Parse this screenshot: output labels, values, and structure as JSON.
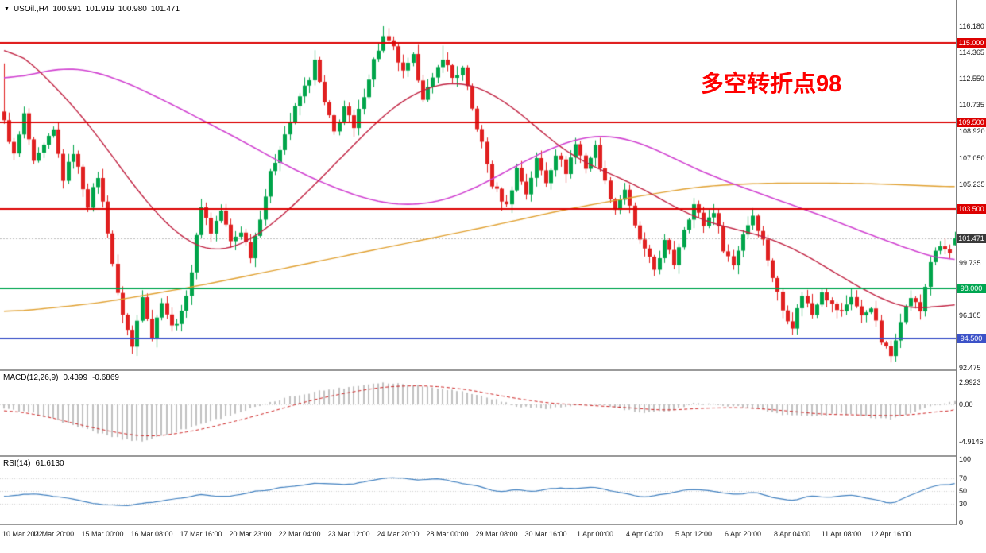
{
  "window": {
    "symbol": "USOil.,H4",
    "ohlc": {
      "open": "100.991",
      "high": "101.919",
      "low": "100.980",
      "close": "101.471"
    }
  },
  "annotation": {
    "text": "多空转折点98",
    "color": "#ff0000"
  },
  "macd_panel": {
    "label": "MACD(12,26,9)",
    "main_value": "0.4399",
    "signal_value": "-0.6869"
  },
  "rsi_panel": {
    "label": "RSI(14)",
    "value": "61.6130"
  },
  "price_axis": {
    "labels": [
      {
        "text": "116.180",
        "price": 116.18
      },
      {
        "text": "114.365",
        "price": 114.365
      },
      {
        "text": "112.550",
        "price": 112.55
      },
      {
        "text": "110.735",
        "price": 110.735
      },
      {
        "text": "108.920",
        "price": 108.92
      },
      {
        "text": "107.050",
        "price": 107.05
      },
      {
        "text": "105.235",
        "price": 105.235
      },
      {
        "text": "99.735",
        "price": 99.735
      },
      {
        "text": "96.105",
        "price": 96.105
      },
      {
        "text": "92.475",
        "price": 92.475
      }
    ],
    "badges": [
      {
        "text": "115.000",
        "price": 115.0,
        "color": "#dc0000"
      },
      {
        "text": "109.500",
        "price": 109.5,
        "color": "#dc0000"
      },
      {
        "text": "103.500",
        "price": 103.5,
        "color": "#dc0000"
      },
      {
        "text": "101.471",
        "price": 101.471,
        "color": "#3a3a3a"
      },
      {
        "text": "98.000",
        "price": 98.0,
        "color": "#00a651"
      },
      {
        "text": "94.500",
        "price": 94.5,
        "color": "#3c52c8"
      }
    ]
  },
  "macd_axis": [
    {
      "text": "2.9923",
      "value": 2.9923
    },
    {
      "text": "0.00",
      "value": 0
    },
    {
      "text": "-4.9146",
      "value": -4.9146
    }
  ],
  "rsi_axis": [
    {
      "text": "100",
      "value": 100
    },
    {
      "text": "70",
      "value": 70
    },
    {
      "text": "50",
      "value": 50
    },
    {
      "text": "30",
      "value": 30
    },
    {
      "text": "0",
      "value": 0
    }
  ],
  "time_axis": [
    "10 Mar 2022",
    "11 Mar 20:00",
    "15 Mar 00:00",
    "16 Mar 08:00",
    "17 Mar 16:00",
    "20 Mar 23:00",
    "22 Mar 04:00",
    "23 Mar 12:00",
    "24 Mar 20:00",
    "28 Mar 00:00",
    "29 Mar 08:00",
    "30 Mar 16:00",
    "1 Apr 00:00",
    "4 Apr 04:00",
    "5 Apr 12:00",
    "6 Apr 20:00",
    "8 Apr 04:00",
    "11 Apr 08:00",
    "12 Apr 16:00"
  ],
  "colors": {
    "candle_up": "#00a44a",
    "candle_down": "#e02020",
    "ma_magenta": "#d040d0",
    "ma_red": "#c02040",
    "ma_orange": "#e0a030",
    "level_red": "#dc0000",
    "level_green": "#00a651",
    "level_blue": "#3c52c8",
    "macd_hist": "#c0c0c0",
    "macd_signal": "#cc2222",
    "rsi_line": "#3f7fbf",
    "current_price_line": "#bbbbbb"
  },
  "chart_data": {
    "type": "candlestick",
    "symbol": "USOil",
    "timeframe": "H4",
    "bars": 194,
    "price_range": [
      92.475,
      116.18
    ],
    "current_price": 101.471,
    "levels": [
      {
        "price": 115.0,
        "color": "#dc0000"
      },
      {
        "price": 109.5,
        "color": "#dc0000"
      },
      {
        "price": 103.5,
        "color": "#dc0000"
      },
      {
        "price": 98.0,
        "color": "#00a651"
      },
      {
        "price": 94.5,
        "color": "#3c52c8"
      }
    ],
    "last_bar": {
      "o": 100.991,
      "h": 101.919,
      "l": 100.98,
      "c": 101.471
    },
    "close_anchors": [
      [
        0,
        109.5
      ],
      [
        2,
        107.2
      ],
      [
        4,
        110.0
      ],
      [
        6,
        106.6
      ],
      [
        8,
        107.8
      ],
      [
        10,
        108.9
      ],
      [
        12,
        105.6
      ],
      [
        14,
        107.5
      ],
      [
        17,
        103.8
      ],
      [
        19,
        105.8
      ],
      [
        21,
        102.0
      ],
      [
        23,
        97.5
      ],
      [
        26,
        93.9
      ],
      [
        28,
        97.6
      ],
      [
        30,
        94.6
      ],
      [
        32,
        97.2
      ],
      [
        34,
        95.3
      ],
      [
        36,
        96.2
      ],
      [
        38,
        99.2
      ],
      [
        40,
        103.8
      ],
      [
        42,
        101.9
      ],
      [
        44,
        103.4
      ],
      [
        46,
        101.2
      ],
      [
        48,
        102.0
      ],
      [
        50,
        100.3
      ],
      [
        52,
        103.0
      ],
      [
        54,
        105.9
      ],
      [
        56,
        107.8
      ],
      [
        58,
        109.6
      ],
      [
        60,
        111.3
      ],
      [
        62,
        112.6
      ],
      [
        63,
        113.7
      ],
      [
        65,
        110.8
      ],
      [
        67,
        108.8
      ],
      [
        69,
        110.6
      ],
      [
        71,
        109.0
      ],
      [
        73,
        111.5
      ],
      [
        75,
        113.8
      ],
      [
        77,
        115.4
      ],
      [
        79,
        114.6
      ],
      [
        81,
        112.9
      ],
      [
        83,
        114.0
      ],
      [
        85,
        111.3
      ],
      [
        87,
        112.4
      ],
      [
        89,
        114.1
      ],
      [
        91,
        112.6
      ],
      [
        93,
        113.2
      ],
      [
        95,
        110.4
      ],
      [
        97,
        108.0
      ],
      [
        99,
        105.2
      ],
      [
        102,
        103.7
      ],
      [
        104,
        106.3
      ],
      [
        106,
        104.6
      ],
      [
        108,
        106.9
      ],
      [
        110,
        105.4
      ],
      [
        112,
        107.4
      ],
      [
        114,
        106.1
      ],
      [
        116,
        108.0
      ],
      [
        118,
        106.4
      ],
      [
        120,
        107.8
      ],
      [
        122,
        105.3
      ],
      [
        124,
        103.5
      ],
      [
        126,
        104.9
      ],
      [
        128,
        102.2
      ],
      [
        130,
        100.6
      ],
      [
        132,
        99.3
      ],
      [
        134,
        101.2
      ],
      [
        136,
        99.7
      ],
      [
        138,
        102.2
      ],
      [
        140,
        103.8
      ],
      [
        142,
        102.4
      ],
      [
        144,
        103.4
      ],
      [
        146,
        100.8
      ],
      [
        148,
        99.6
      ],
      [
        150,
        101.8
      ],
      [
        152,
        103.1
      ],
      [
        154,
        101.3
      ],
      [
        156,
        98.8
      ],
      [
        158,
        96.5
      ],
      [
        160,
        95.4
      ],
      [
        162,
        97.6
      ],
      [
        164,
        96.2
      ],
      [
        166,
        97.9
      ],
      [
        168,
        96.8
      ],
      [
        170,
        96.3
      ],
      [
        172,
        97.5
      ],
      [
        174,
        96.0
      ],
      [
        176,
        96.8
      ],
      [
        178,
        94.3
      ],
      [
        180,
        93.3
      ],
      [
        182,
        95.9
      ],
      [
        184,
        97.4
      ],
      [
        186,
        96.4
      ],
      [
        188,
        99.9
      ],
      [
        190,
        100.9
      ],
      [
        192,
        100.4
      ],
      [
        193,
        101.471
      ]
    ],
    "spikes": [
      {
        "i": 0,
        "high": 113.6
      },
      {
        "i": 26,
        "low": 93.45
      },
      {
        "i": 77,
        "high": 116.18
      },
      {
        "i": 89,
        "high": 114.83
      },
      {
        "i": 180,
        "low": 92.85
      }
    ],
    "ma_magenta": [
      [
        0,
        112.3
      ],
      [
        8,
        113.1
      ],
      [
        15,
        113.4
      ],
      [
        25,
        112.3
      ],
      [
        35,
        110.6
      ],
      [
        48,
        108.3
      ],
      [
        60,
        106.0
      ],
      [
        72,
        104.3
      ],
      [
        80,
        103.7
      ],
      [
        88,
        103.9
      ],
      [
        95,
        104.8
      ],
      [
        103,
        106.3
      ],
      [
        110,
        107.6
      ],
      [
        117,
        108.5
      ],
      [
        122,
        108.7
      ],
      [
        128,
        108.3
      ],
      [
        135,
        107.2
      ],
      [
        142,
        106.0
      ],
      [
        150,
        105.0
      ],
      [
        158,
        104.0
      ],
      [
        165,
        103.2
      ],
      [
        172,
        102.2
      ],
      [
        180,
        101.2
      ],
      [
        187,
        100.3
      ],
      [
        193,
        99.7
      ]
    ],
    "ma_red": [
      [
        0,
        115.5
      ],
      [
        8,
        112.8
      ],
      [
        16,
        110.0
      ],
      [
        24,
        106.2
      ],
      [
        31,
        103.0
      ],
      [
        40,
        100.4
      ],
      [
        48,
        100.8
      ],
      [
        56,
        102.8
      ],
      [
        64,
        105.5
      ],
      [
        72,
        108.3
      ],
      [
        80,
        111.0
      ],
      [
        89,
        112.4
      ],
      [
        96,
        112.2
      ],
      [
        105,
        110.2
      ],
      [
        113,
        107.6
      ],
      [
        121,
        106.2
      ],
      [
        129,
        105.1
      ],
      [
        137,
        103.4
      ],
      [
        145,
        102.3
      ],
      [
        153,
        101.8
      ],
      [
        161,
        100.7
      ],
      [
        169,
        99.0
      ],
      [
        177,
        97.4
      ],
      [
        184,
        96.4
      ],
      [
        189,
        96.6
      ],
      [
        193,
        97.3
      ]
    ],
    "ma_orange": [
      [
        0,
        96.3
      ],
      [
        20,
        97.0
      ],
      [
        40,
        98.2
      ],
      [
        60,
        99.6
      ],
      [
        80,
        101.0
      ],
      [
        100,
        102.4
      ],
      [
        113,
        103.4
      ],
      [
        129,
        104.4
      ],
      [
        142,
        105.1
      ],
      [
        155,
        105.3
      ],
      [
        170,
        105.3
      ],
      [
        182,
        105.2
      ],
      [
        193,
        105.0
      ]
    ],
    "macd": {
      "range": [
        -4.9146,
        2.9923
      ],
      "current_main": 0.4399,
      "current_signal": -0.6869,
      "hist_anchors": [
        [
          0,
          -0.6
        ],
        [
          6,
          -1.2
        ],
        [
          12,
          -2.3
        ],
        [
          18,
          -3.6
        ],
        [
          24,
          -4.6
        ],
        [
          28,
          -4.9
        ],
        [
          34,
          -3.8
        ],
        [
          40,
          -2.6
        ],
        [
          46,
          -1.4
        ],
        [
          52,
          -0.2
        ],
        [
          58,
          1.0
        ],
        [
          64,
          1.8
        ],
        [
          70,
          2.3
        ],
        [
          76,
          2.9
        ],
        [
          82,
          2.7
        ],
        [
          88,
          2.2
        ],
        [
          94,
          1.6
        ],
        [
          100,
          0.6
        ],
        [
          104,
          -0.2
        ],
        [
          110,
          -0.6
        ],
        [
          116,
          -0.2
        ],
        [
          120,
          0.1
        ],
        [
          126,
          -0.7
        ],
        [
          130,
          -1.2
        ],
        [
          136,
          -0.7
        ],
        [
          140,
          0.2
        ],
        [
          146,
          -0.1
        ],
        [
          152,
          -0.5
        ],
        [
          158,
          -1.3
        ],
        [
          164,
          -1.6
        ],
        [
          170,
          -1.2
        ],
        [
          176,
          -1.7
        ],
        [
          180,
          -1.9
        ],
        [
          184,
          -1.1
        ],
        [
          188,
          -0.3
        ],
        [
          193,
          0.44
        ]
      ],
      "signal_anchors": [
        [
          0,
          -0.7
        ],
        [
          8,
          -1.5
        ],
        [
          16,
          -2.8
        ],
        [
          24,
          -3.9
        ],
        [
          30,
          -4.3
        ],
        [
          38,
          -3.6
        ],
        [
          46,
          -2.4
        ],
        [
          54,
          -1.0
        ],
        [
          62,
          0.5
        ],
        [
          70,
          1.6
        ],
        [
          78,
          2.4
        ],
        [
          86,
          2.5
        ],
        [
          94,
          2.0
        ],
        [
          102,
          1.0
        ],
        [
          110,
          0.2
        ],
        [
          118,
          -0.1
        ],
        [
          126,
          -0.4
        ],
        [
          134,
          -0.8
        ],
        [
          142,
          -0.5
        ],
        [
          150,
          -0.4
        ],
        [
          158,
          -0.8
        ],
        [
          166,
          -1.3
        ],
        [
          174,
          -1.4
        ],
        [
          182,
          -1.5
        ],
        [
          188,
          -1.1
        ],
        [
          193,
          -0.6869
        ]
      ]
    },
    "rsi": {
      "current": 61.613,
      "levels": [
        70,
        50,
        30
      ],
      "anchors": [
        [
          0,
          42
        ],
        [
          6,
          46
        ],
        [
          12,
          40
        ],
        [
          18,
          31
        ],
        [
          24,
          27
        ],
        [
          28,
          30
        ],
        [
          34,
          36
        ],
        [
          40,
          44
        ],
        [
          46,
          41
        ],
        [
          52,
          50
        ],
        [
          58,
          57
        ],
        [
          64,
          62
        ],
        [
          70,
          60
        ],
        [
          76,
          69
        ],
        [
          80,
          72
        ],
        [
          84,
          67
        ],
        [
          88,
          70
        ],
        [
          92,
          64
        ],
        [
          96,
          58
        ],
        [
          100,
          48
        ],
        [
          104,
          52
        ],
        [
          108,
          50
        ],
        [
          112,
          55
        ],
        [
          116,
          54
        ],
        [
          120,
          57
        ],
        [
          124,
          49
        ],
        [
          128,
          44
        ],
        [
          130,
          40
        ],
        [
          134,
          46
        ],
        [
          138,
          51
        ],
        [
          140,
          53
        ],
        [
          144,
          50
        ],
        [
          148,
          44
        ],
        [
          152,
          49
        ],
        [
          156,
          40
        ],
        [
          160,
          34
        ],
        [
          164,
          42
        ],
        [
          168,
          40
        ],
        [
          172,
          44
        ],
        [
          176,
          37
        ],
        [
          180,
          30
        ],
        [
          184,
          44
        ],
        [
          188,
          56
        ],
        [
          191,
          60
        ],
        [
          193,
          61.61
        ]
      ]
    }
  }
}
